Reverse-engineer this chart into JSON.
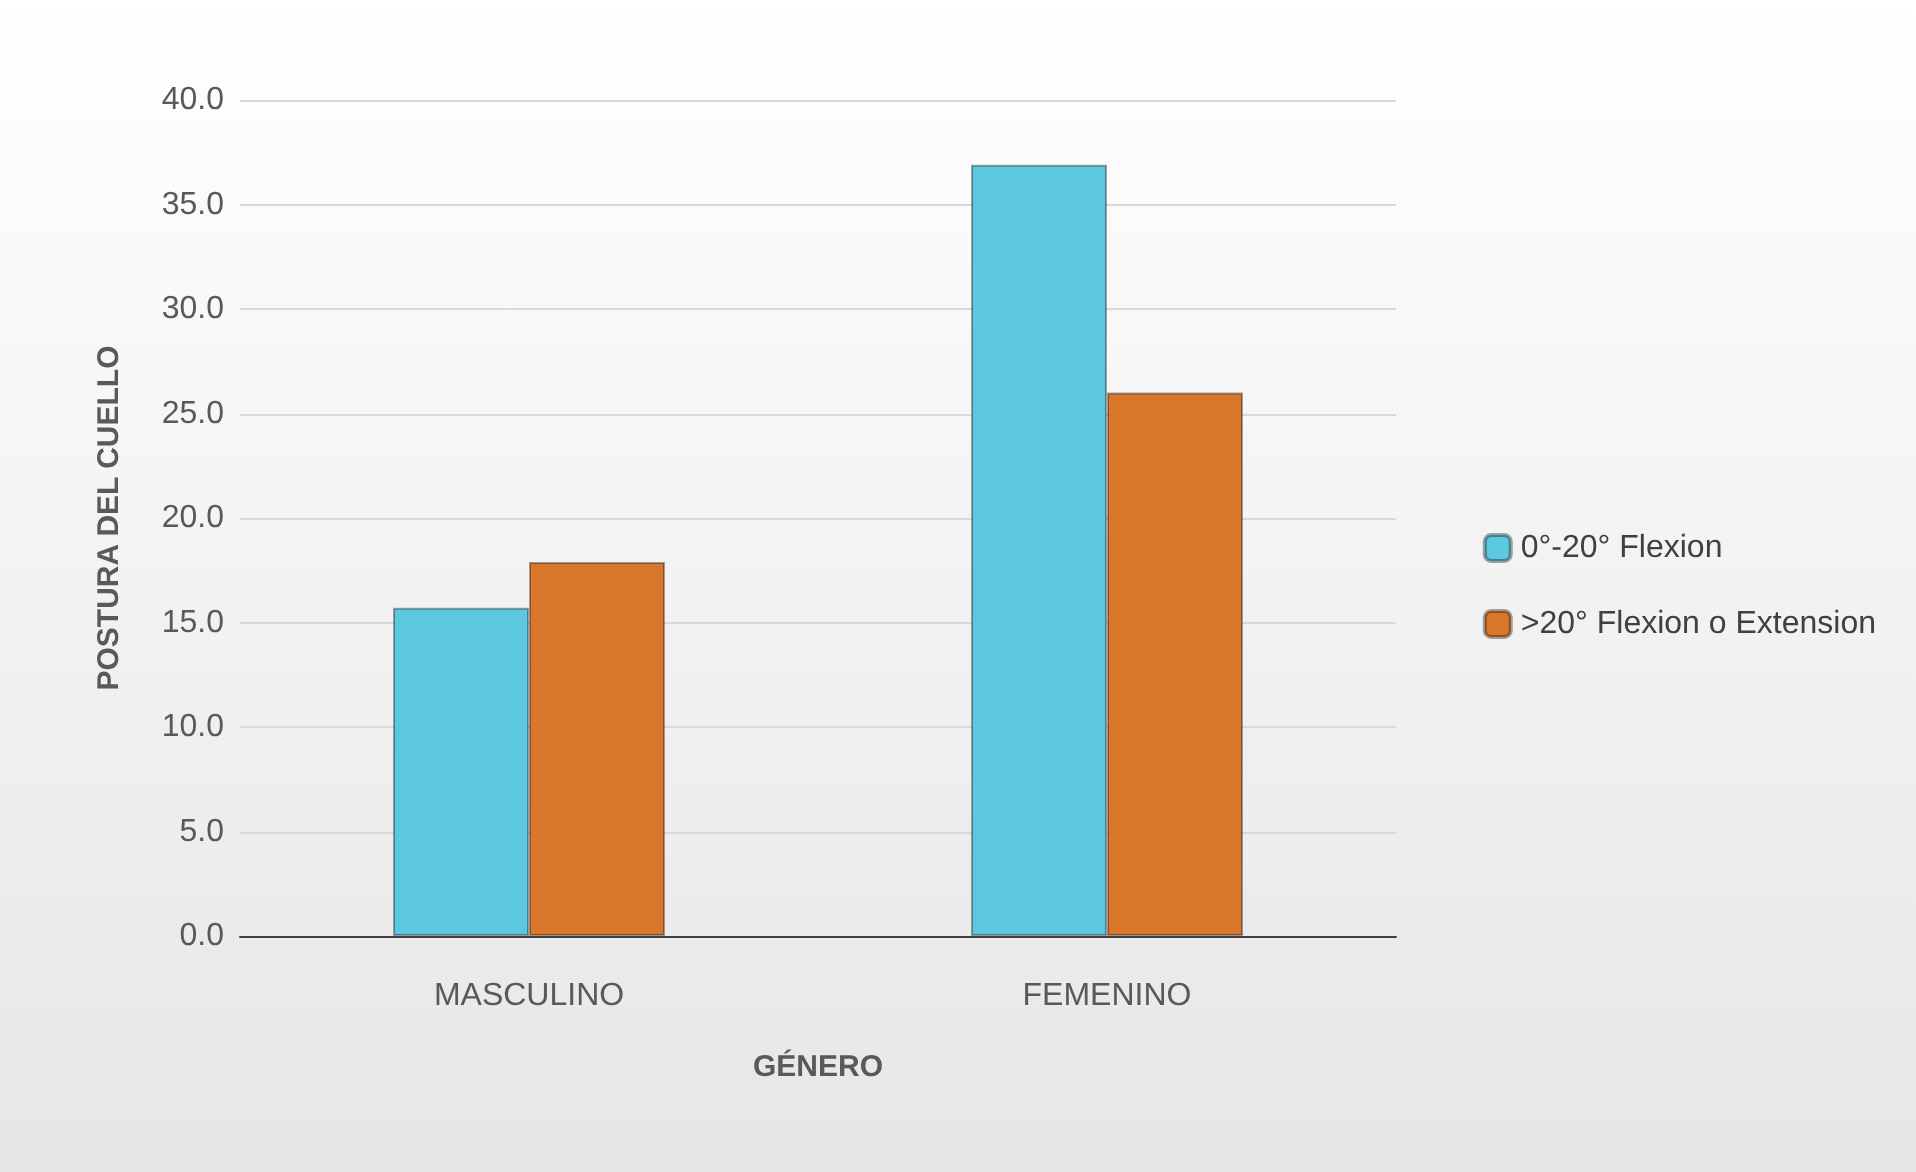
{
  "chart_data": {
    "type": "bar",
    "xlabel": "GÉNERO",
    "ylabel": "POSTURA DEL CUELLO",
    "categories": [
      "MASCULINO",
      "FEMENINO"
    ],
    "series": [
      {
        "name": "0°-20° Flexion",
        "color": "#5bc8e0",
        "values": [
          15.7,
          36.9
        ]
      },
      {
        "name": ">20° Flexion o Extension",
        "color": "#d9782d",
        "values": [
          17.9,
          26.0
        ]
      }
    ],
    "ylim": [
      0,
      40
    ],
    "yticks": [
      {
        "value": 0,
        "label": "0.0"
      },
      {
        "value": 5,
        "label": "5.0"
      },
      {
        "value": 10,
        "label": "10.0"
      },
      {
        "value": 15,
        "label": "15.0"
      },
      {
        "value": 20,
        "label": "20.0"
      },
      {
        "value": 25,
        "label": "25.0"
      },
      {
        "value": 30,
        "label": "30.0"
      },
      {
        "value": 35,
        "label": "35.0"
      },
      {
        "value": 40,
        "label": "40.0"
      }
    ],
    "grid": "y",
    "legend": "right"
  }
}
